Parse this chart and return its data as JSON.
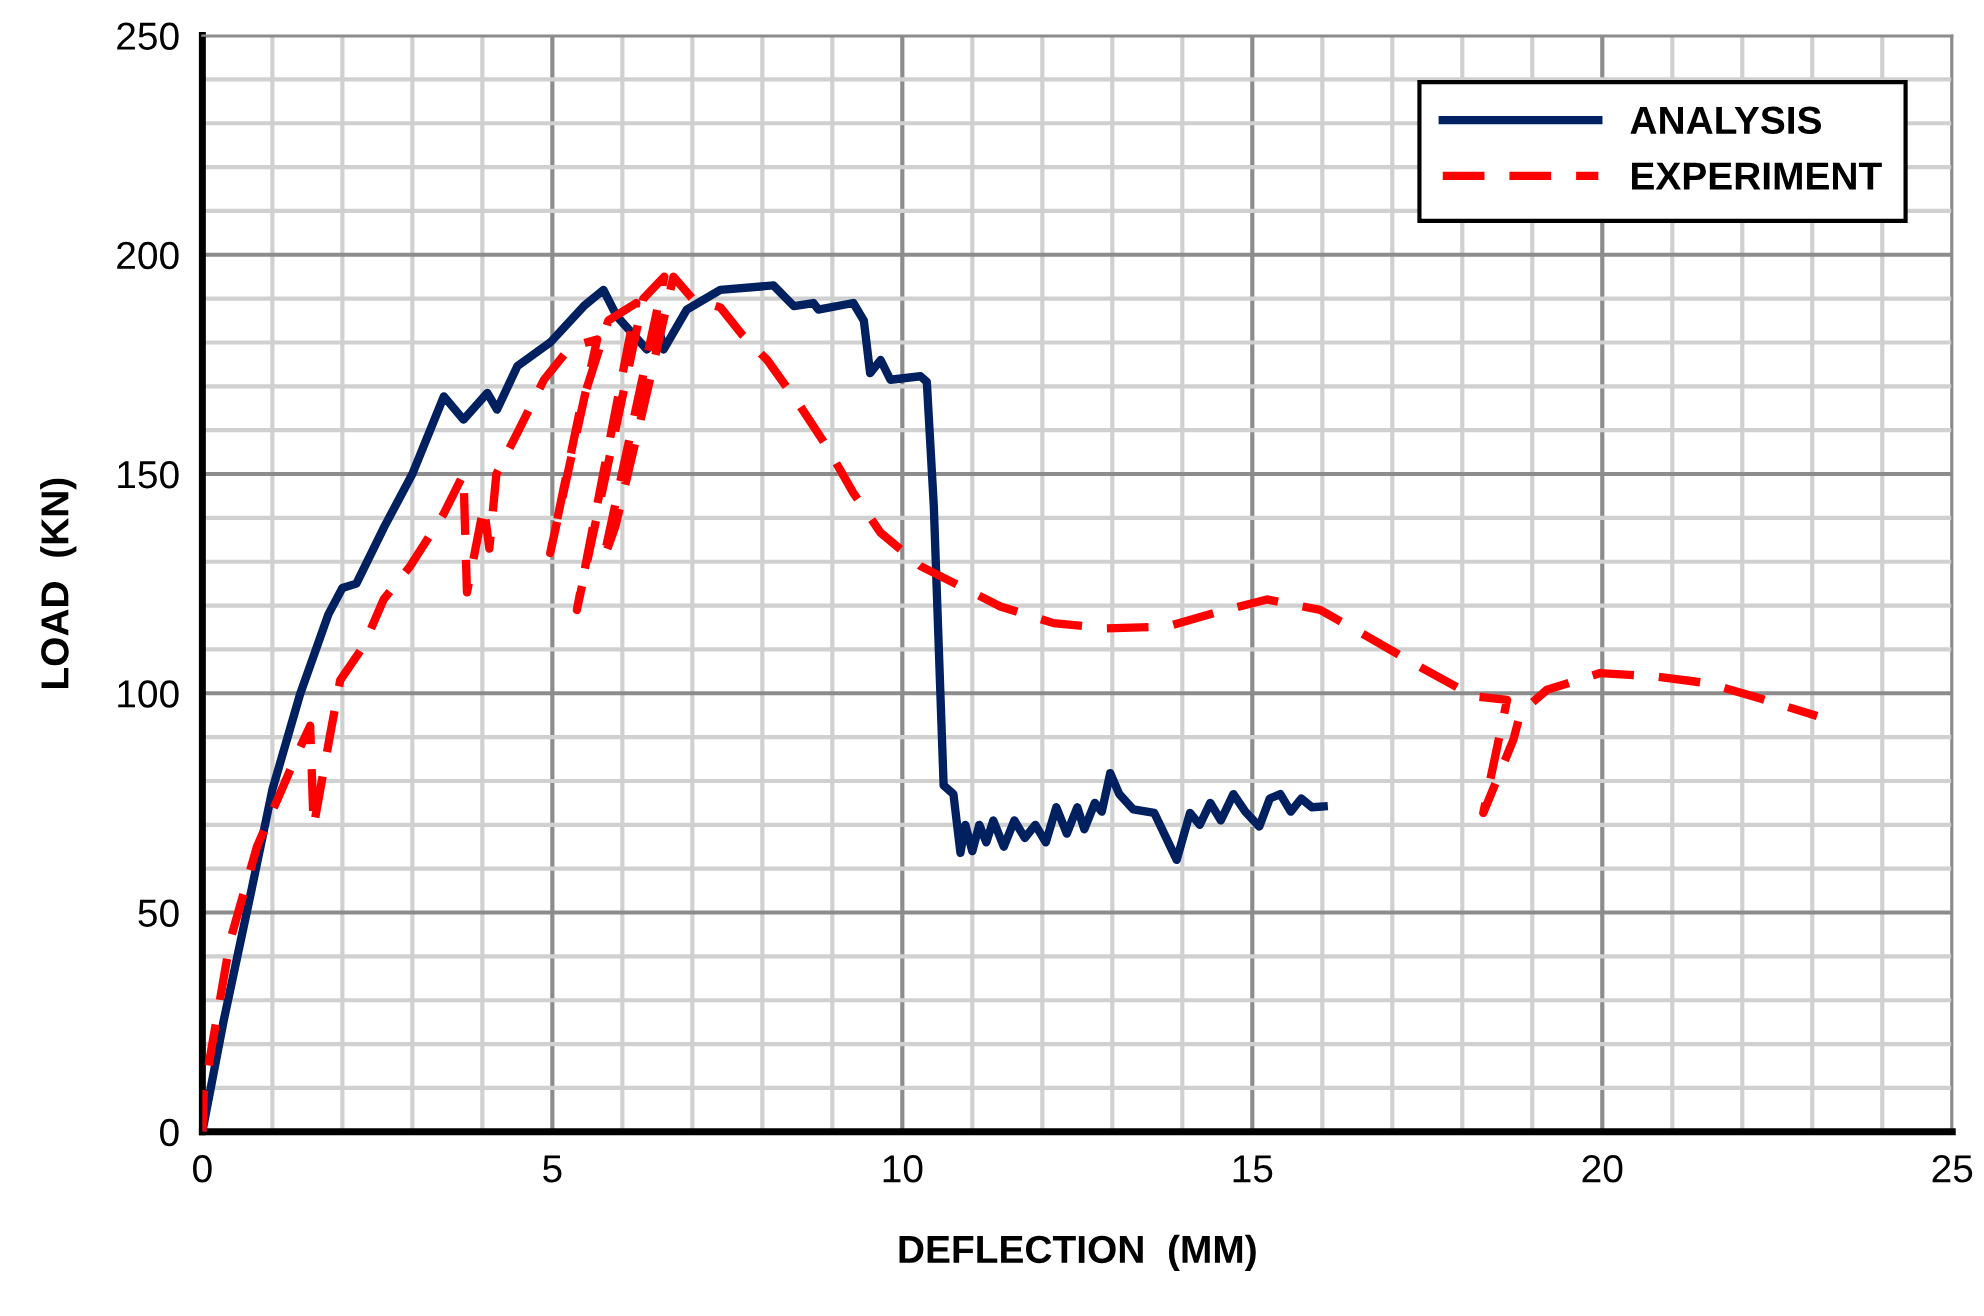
{
  "chart_data": {
    "type": "line",
    "xlabel": "DEFLECTION  (MM)",
    "ylabel": "LOAD  (KN)",
    "xlim": [
      0,
      25
    ],
    "ylim": [
      0,
      250
    ],
    "xticks": [
      0,
      5,
      10,
      15,
      20,
      25
    ],
    "yticks": [
      0,
      50,
      100,
      150,
      200,
      250
    ],
    "grid": true,
    "legend": "top right",
    "series": [
      {
        "name": "ANALYSIS",
        "color": "#002060",
        "line_style": "solid",
        "x": [
          0,
          0.3,
          0.7,
          1.0,
          1.4,
          1.8,
          2.0,
          2.2,
          2.6,
          3.0,
          3.45,
          3.73,
          4.07,
          4.21,
          4.5,
          4.97,
          5.45,
          5.73,
          5.92,
          6.35,
          6.54,
          6.59,
          6.92,
          7.4,
          8.16,
          8.45,
          8.73,
          8.8,
          9.3,
          9.45,
          9.54,
          9.69,
          9.83,
          10.26,
          10.35,
          10.45,
          10.59,
          10.73,
          10.83,
          10.9,
          11.0,
          11.1,
          11.2,
          11.3,
          11.45,
          11.6,
          11.75,
          11.9,
          12.05,
          12.2,
          12.35,
          12.5,
          12.6,
          12.75,
          12.85,
          12.97,
          13.1,
          13.3,
          13.6,
          13.92,
          14.11,
          14.25,
          14.4,
          14.55,
          14.73,
          14.9,
          15.1,
          15.25,
          15.4,
          15.55,
          15.7,
          15.85,
          16.02
        ],
        "values": [
          0,
          25,
          55,
          78,
          100,
          118,
          124,
          125,
          138,
          150,
          167.7,
          162.4,
          168.5,
          164.7,
          174.6,
          180,
          188.3,
          192,
          186,
          178.4,
          182,
          178.4,
          187.5,
          192,
          193,
          188.3,
          189,
          187.5,
          189,
          185,
          173,
          176,
          171.5,
          172.3,
          171,
          142.6,
          79,
          77,
          63.6,
          70,
          64,
          70,
          66,
          71,
          65,
          71,
          67,
          70,
          66,
          74,
          68,
          74,
          69,
          75,
          73,
          81.8,
          77,
          73.5,
          72.7,
          62,
          72.7,
          70,
          75,
          71,
          77,
          73,
          69.6,
          76,
          77,
          73,
          76,
          74,
          74.2
        ]
      },
      {
        "name": "EXPERIMENT",
        "color": "#ff0000",
        "line_style": "dashed",
        "x": [
          0,
          0.02,
          0.4,
          0.78,
          1.07,
          1.35,
          1.54,
          1.59,
          1.83,
          1.97,
          2.3,
          2.59,
          2.97,
          3.45,
          3.73,
          3.78,
          4.02,
          4.1,
          4.2,
          4.5,
          4.88,
          5.26,
          5.64,
          4.97,
          5.4,
          5.8,
          6.2,
          5.35,
          5.9,
          6.3,
          6.6,
          5.73,
          5.9,
          6.3,
          6.73,
          7.0,
          7.4,
          7.7,
          8.07,
          8.54,
          8.92,
          9.3,
          9.69,
          10.26,
          11.4,
          12.16,
          12.92,
          13.78,
          14.45,
          15.21,
          15.97,
          16.64,
          17.4,
          18.16,
          18.64,
          18.3,
          18.73,
          18.83,
          19.21,
          19.97,
          20.73,
          21.5,
          22.26,
          23.07
        ],
        "values": [
          0,
          8.8,
          43.8,
          65,
          75.7,
          86,
          92.6,
          69.6,
          91,
          103,
          110.7,
          121.4,
          129,
          141,
          150,
          123,
          142.6,
          133,
          150,
          159.4,
          171.5,
          179,
          180.7,
          132,
          165,
          185,
          189,
          119,
          160,
          190,
          195,
          130.5,
          138,
          165,
          195,
          190,
          188,
          182,
          176,
          165.5,
          156.3,
          145.7,
          136.6,
          129,
          119.8,
          116,
          114.8,
          115.2,
          118.3,
          121.4,
          119,
          113,
          106,
          99.3,
          98.5,
          72.7,
          89.4,
          95.5,
          100.8,
          104.6,
          103.9,
          102.3,
          98.8,
          94.8
        ]
      }
    ]
  }
}
